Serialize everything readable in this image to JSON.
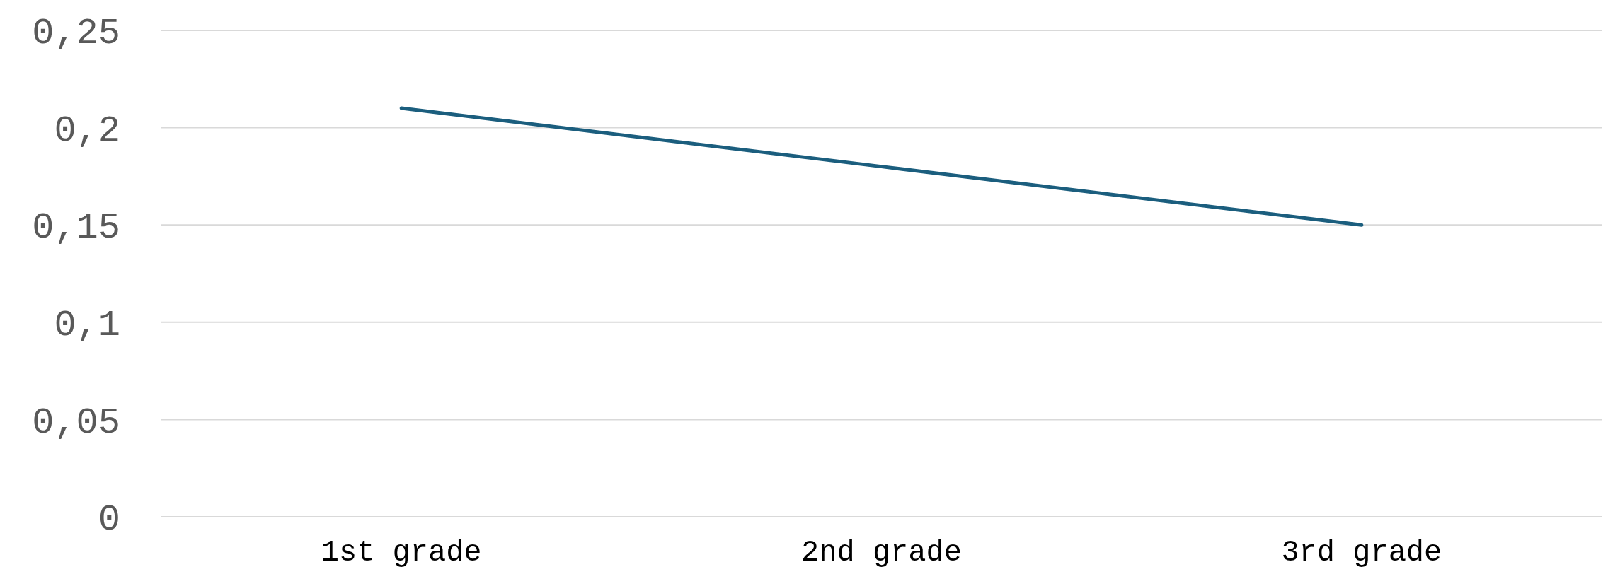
{
  "chart_data": {
    "type": "line",
    "categories": [
      "1st grade",
      "2nd grade",
      "3rd grade"
    ],
    "series": [
      {
        "color": "#1b5e7e",
        "values": [
          0.21,
          0.18,
          0.15
        ]
      }
    ],
    "ylim": [
      0,
      0.25
    ],
    "yticks": [
      0,
      {
        "value": 0.05,
        "label": "0,05"
      },
      {
        "value": 0.1,
        "label": "0,1"
      },
      {
        "value": 0.15,
        "label": "0,15"
      },
      {
        "value": 0.2,
        "label": "0,2"
      },
      {
        "value": 0.25,
        "label": "0,25"
      }
    ],
    "grid": "y",
    "marker": "none",
    "line_style": "solid"
  }
}
